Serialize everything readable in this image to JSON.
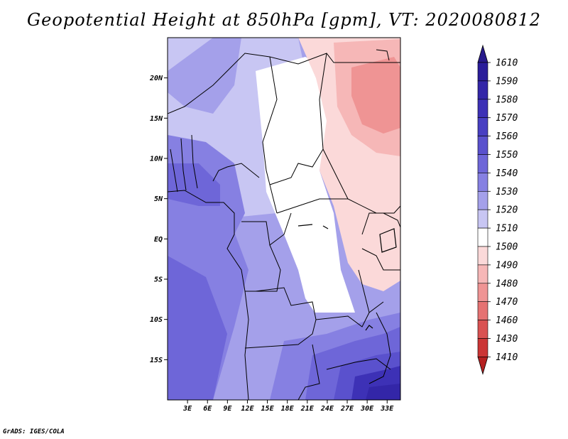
{
  "title": "Geopotential Height at 850hPa [gpm], VT: 2020080812",
  "credit": "GrADS: IGES/COLA",
  "map": {
    "lon_range": [
      0,
      35
    ],
    "lat_range": [
      -20,
      25
    ],
    "lat_ticks": [
      {
        "value": 20,
        "label": "20N"
      },
      {
        "value": 15,
        "label": "15N"
      },
      {
        "value": 10,
        "label": "10N"
      },
      {
        "value": 5,
        "label": "5N"
      },
      {
        "value": 0,
        "label": "EQ"
      },
      {
        "value": -5,
        "label": "5S"
      },
      {
        "value": -10,
        "label": "10S"
      },
      {
        "value": -15,
        "label": "15S"
      }
    ],
    "lon_ticks": [
      {
        "value": 3,
        "label": "3E"
      },
      {
        "value": 6,
        "label": "6E"
      },
      {
        "value": 9,
        "label": "9E"
      },
      {
        "value": 12,
        "label": "12E"
      },
      {
        "value": 15,
        "label": "15E"
      },
      {
        "value": 18,
        "label": "18E"
      },
      {
        "value": 21,
        "label": "21E"
      },
      {
        "value": 24,
        "label": "24E"
      },
      {
        "value": 27,
        "label": "27E"
      },
      {
        "value": 30,
        "label": "30E"
      },
      {
        "value": 33,
        "label": "33E"
      }
    ]
  },
  "colorbar": {
    "levels": [
      {
        "label": "1610",
        "color": "#2a1d9a"
      },
      {
        "label": "1590",
        "color": "#3326a8"
      },
      {
        "label": "1580",
        "color": "#3d31b6"
      },
      {
        "label": "1570",
        "color": "#483fc2"
      },
      {
        "label": "1560",
        "color": "#5a51cd"
      },
      {
        "label": "1550",
        "color": "#6e66d8"
      },
      {
        "label": "1540",
        "color": "#8680e2"
      },
      {
        "label": "1530",
        "color": "#a4a0ea"
      },
      {
        "label": "1520",
        "color": "#c8c6f3"
      },
      {
        "label": "1510",
        "color": "#ffffff"
      },
      {
        "label": "1500",
        "color": "#fbd9d9"
      },
      {
        "label": "1490",
        "color": "#f6b7b7"
      },
      {
        "label": "1480",
        "color": "#ef9494"
      },
      {
        "label": "1470",
        "color": "#e57272"
      },
      {
        "label": "1460",
        "color": "#d95252"
      },
      {
        "label": "1430",
        "color": "#cb3535"
      },
      {
        "label": "1410",
        "color": "#b81f1f"
      }
    ],
    "top_triangle_color": "#281a8c",
    "bottom_triangle_color": "#b52020"
  }
}
